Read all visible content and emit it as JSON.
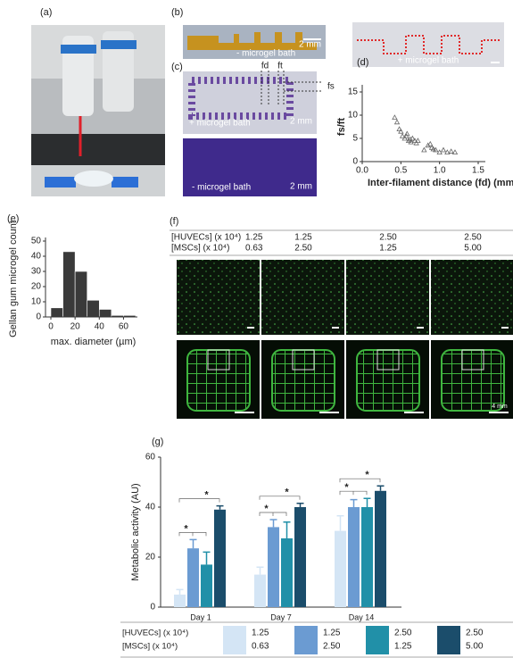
{
  "panel_labels": [
    "(a)",
    "(b)",
    "(c)",
    "(d)",
    "(e)",
    "(f)",
    "(g)"
  ],
  "images": {
    "b_left": [
      "- microgel bath",
      "2 mm"
    ],
    "b_right": [
      "+ microgel bath"
    ],
    "c_top": [
      "fd",
      "ft",
      "fs",
      "+ microgel bath",
      "2 mm"
    ],
    "c_bottom": [
      "- microgel bath",
      "2 mm"
    ],
    "f_scale": "4 mm"
  },
  "f_table": {
    "rows": [
      {
        "label": "[HUVECs] (x 10⁴)",
        "values": [
          "1.25",
          "1.25",
          "2.50",
          "2.50"
        ]
      },
      {
        "label": "[MSCs] (x 10⁴)",
        "values": [
          "0.63",
          "2.50",
          "1.25",
          "5.00"
        ]
      }
    ]
  },
  "chart_data": [
    {
      "type": "scatter",
      "x_label": "Inter-filament distance (fd) (mm)",
      "y_label": "fs/ft",
      "x": [
        0.42,
        0.45,
        0.5,
        0.52,
        0.55,
        0.57,
        0.6,
        0.62,
        0.65,
        0.68,
        0.7,
        0.72,
        0.48,
        0.58,
        0.63,
        0.85,
        0.88,
        0.9,
        0.95,
        1.0,
        1.05,
        1.1,
        1.15,
        1.2,
        0.92,
        0.8
      ],
      "y": [
        9.5,
        8.5,
        6.5,
        5.5,
        5,
        5.5,
        4.5,
        4.8,
        5,
        4.5,
        4,
        4.5,
        7,
        6,
        4.2,
        3.5,
        3.8,
        3,
        2.5,
        2,
        2.5,
        2,
        2.2,
        2,
        2.7,
        2.5
      ],
      "color": "#666666",
      "xlim": [
        0,
        1.5
      ],
      "xticks": [
        {
          "value": 0,
          "label": "0.0"
        },
        0.5,
        {
          "value": 1,
          "label": "1.0"
        },
        1.5
      ],
      "ylim": [
        0,
        15
      ],
      "yticks": [
        0,
        5,
        10,
        15
      ]
    },
    {
      "type": "histogram",
      "x_label": "max. diameter (µm)",
      "y_label": "Gellan gum microgel count",
      "bins": [
        0,
        10,
        20,
        30,
        40,
        50,
        60,
        70
      ],
      "values": [
        6,
        43,
        30,
        11,
        5,
        1,
        1
      ],
      "color": "#3a3a3a",
      "xlim": [
        0,
        70
      ],
      "xticks": [
        0,
        20,
        40,
        60
      ],
      "ylim": [
        0,
        50
      ],
      "yticks": [
        0,
        10,
        20,
        30,
        40,
        50
      ]
    },
    {
      "type": "bar",
      "y_label": "Metabolic activity (AU)",
      "categories": [
        "Day 1",
        "Day 7",
        "Day 14"
      ],
      "legend_rows": [
        "[HUVECs] (x 10⁴)",
        "[MSCs] (x 10⁴)"
      ],
      "series": [
        {
          "huvecs": "1.25",
          "mscs": "0.63",
          "color": "#d4e5f5",
          "values": [
            5,
            13,
            30.5
          ],
          "errors": [
            2,
            3,
            6
          ]
        },
        {
          "huvecs": "1.25",
          "mscs": "2.50",
          "color": "#6b9bd2",
          "values": [
            23.5,
            32,
            40
          ],
          "errors": [
            3.5,
            3,
            3
          ]
        },
        {
          "huvecs": "2.50",
          "mscs": "1.25",
          "color": "#2190a8",
          "values": [
            17,
            27.5,
            40
          ],
          "errors": [
            5,
            6.5,
            3.5
          ]
        },
        {
          "huvecs": "2.50",
          "mscs": "5.00",
          "color": "#1b4d6b",
          "values": [
            39,
            40,
            46.5
          ],
          "errors": [
            1.5,
            1.5,
            2
          ]
        }
      ],
      "significance": [
        [
          "*",
          "*"
        ],
        [
          "*",
          "*"
        ],
        [
          "*",
          "*"
        ]
      ],
      "ylim": [
        0,
        60
      ],
      "yticks": [
        0,
        20,
        40,
        60
      ]
    }
  ]
}
